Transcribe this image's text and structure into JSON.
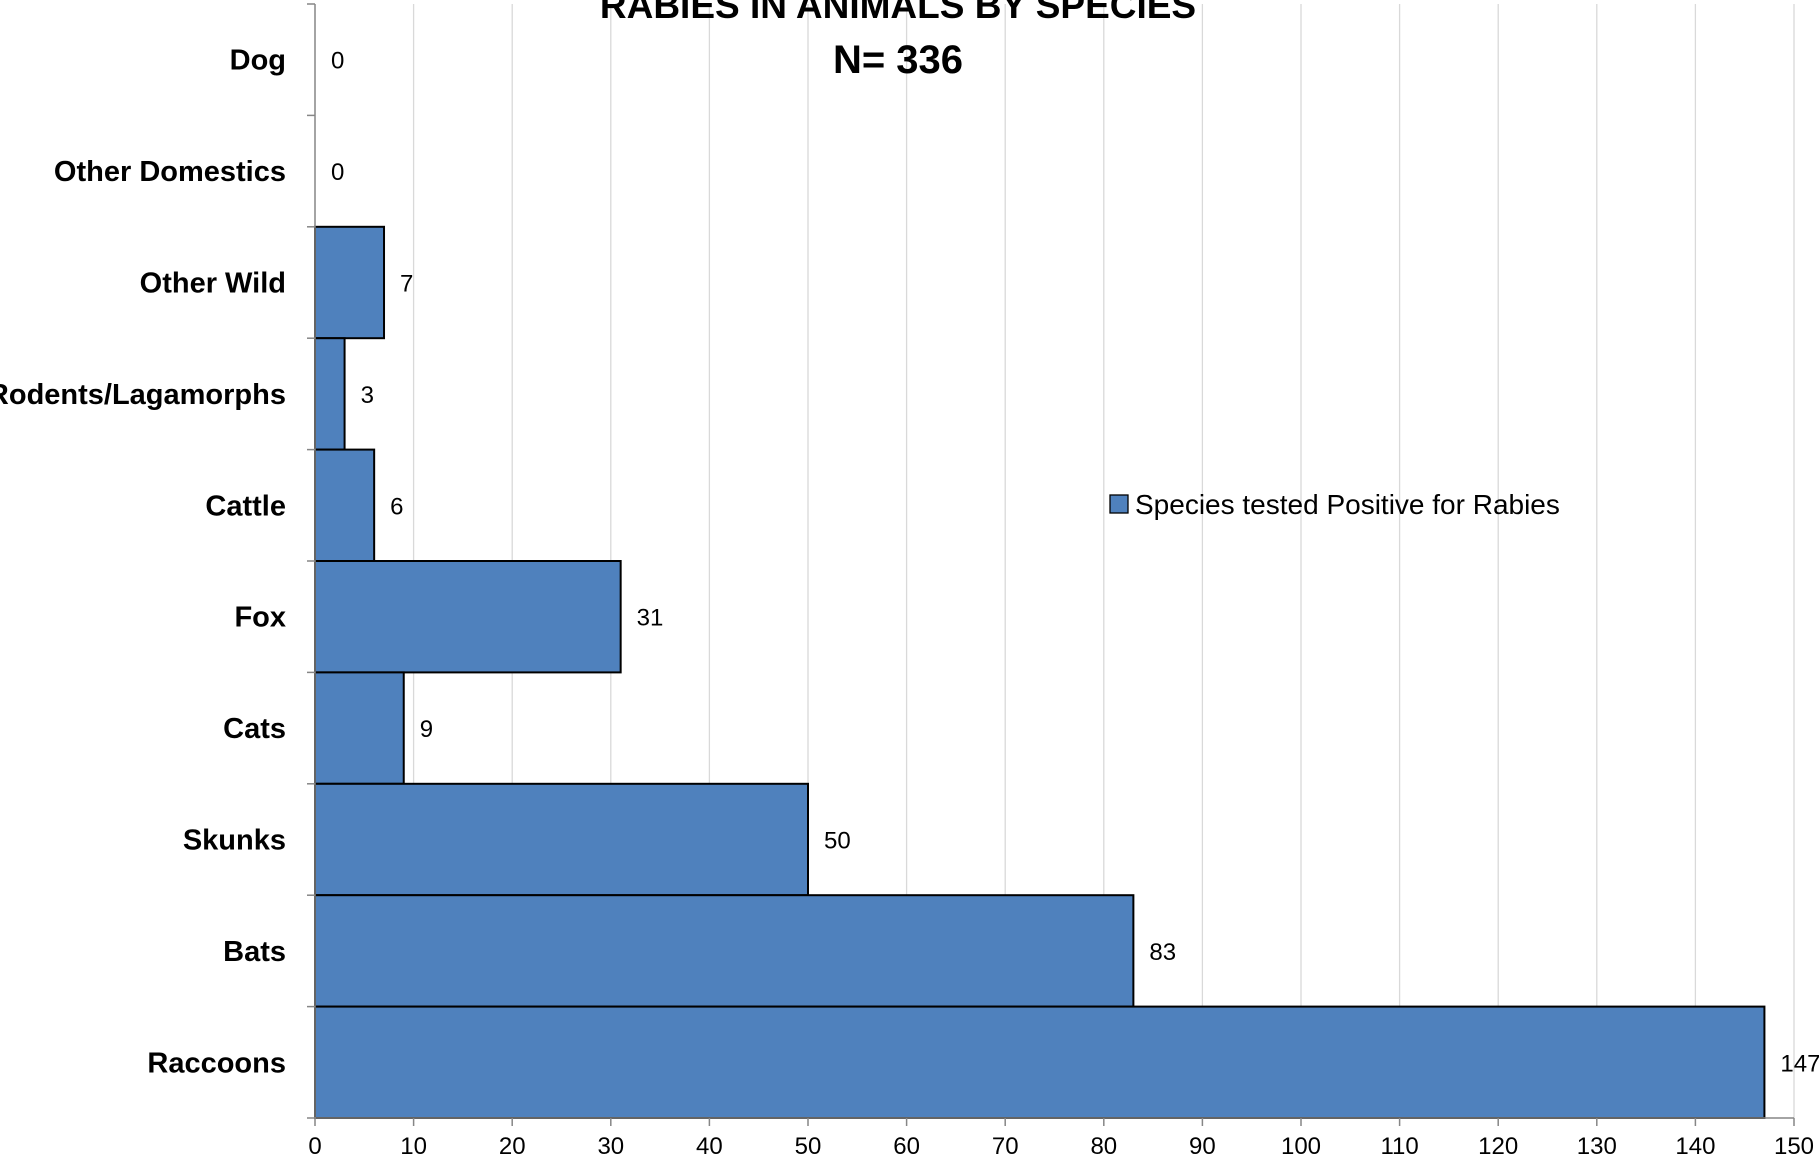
{
  "chart_data": {
    "type": "bar",
    "orientation": "horizontal",
    "title": "RABIES IN ANIMALS BY SPECIES",
    "subtitle": "N= 336",
    "categories": [
      "Dog",
      "Other Domestics",
      "Other Wild",
      "Rodents/Lagamorphs",
      "Cattle",
      "Fox",
      "Cats",
      "Skunks",
      "Bats",
      "Raccoons"
    ],
    "series": [
      {
        "name": "Species tested Positive for Rabies",
        "values": [
          0,
          0,
          7,
          3,
          6,
          31,
          9,
          50,
          83,
          147
        ],
        "color": "#4f81bd"
      }
    ],
    "data_labels": [
      "0",
      "0",
      "7",
      "3",
      "6",
      "31",
      "9",
      "50",
      "83",
      "147"
    ],
    "xlim": [
      0,
      150
    ],
    "x_ticks": [
      0,
      10,
      20,
      30,
      40,
      50,
      60,
      70,
      80,
      90,
      100,
      110,
      120,
      130,
      140,
      150
    ],
    "x_tick_labels": [
      "0",
      "10",
      "20",
      "30",
      "40",
      "50",
      "60",
      "70",
      "80",
      "90",
      "100",
      "110",
      "120",
      "130",
      "140",
      "150"
    ],
    "xlabel": "",
    "ylabel": "",
    "grid": "vertical",
    "legend_position": "right",
    "colors": {
      "bar_fill": "#4f81bd",
      "bar_stroke": "#000000",
      "grid": "#d9d9d9",
      "axis": "#868686"
    }
  }
}
